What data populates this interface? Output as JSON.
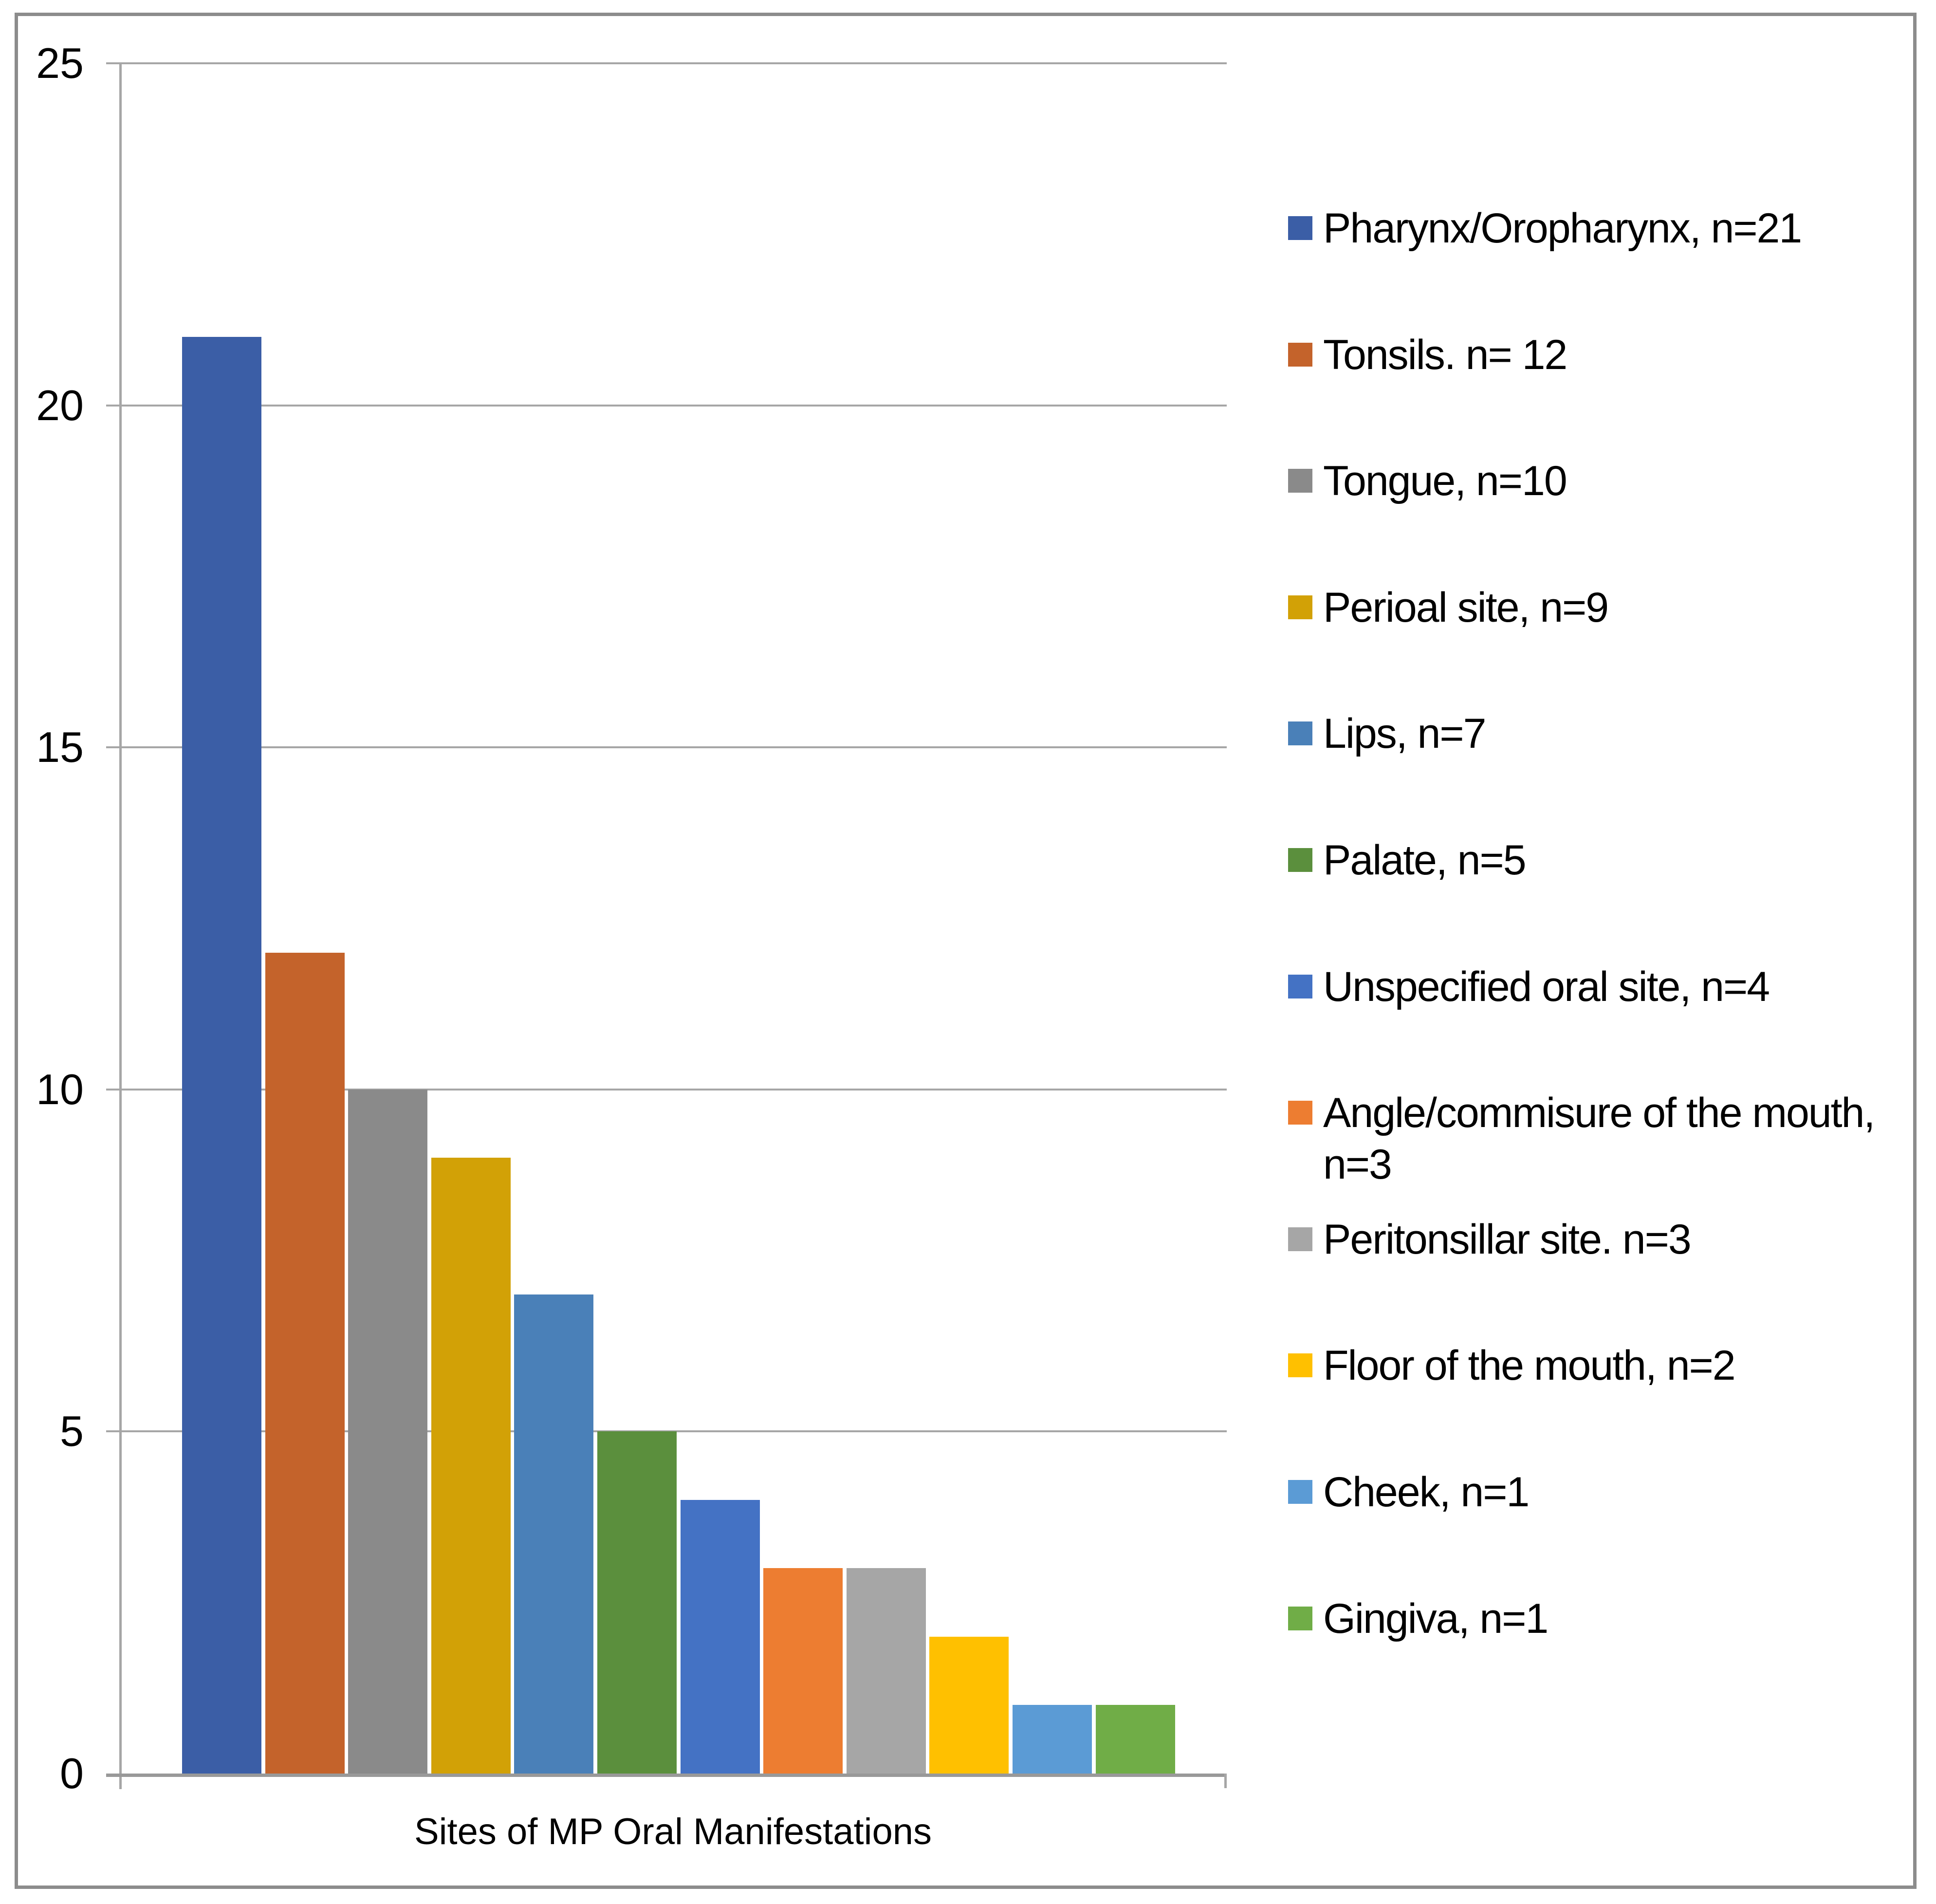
{
  "chart_data": {
    "type": "bar",
    "title": "",
    "xlabel": "Sites of MP Oral Manifestations",
    "ylabel": "",
    "ylim": [
      0,
      25
    ],
    "yticks": [
      0,
      5,
      10,
      15,
      20,
      25
    ],
    "ytick_labels": [
      "0",
      "5",
      "10",
      "15",
      "20",
      "25"
    ],
    "grid": "horizontal gridlines on",
    "legend_position": "right",
    "categories": [
      "Pharynx/Oropharynx",
      "Tonsils",
      "Tongue",
      "Perioal site",
      "Lips",
      "Palate",
      "Unspecified oral site",
      "Angle/commisure of the mouth",
      "Peritonsillar site",
      "Floor of the mouth",
      "Cheek",
      "Gingiva"
    ],
    "values": [
      21,
      12,
      10,
      9,
      7,
      5,
      4,
      3,
      3,
      2,
      1,
      1
    ],
    "series": [
      {
        "name": "Pharynx/Oropharynx",
        "value": 21,
        "color": "#3B5EA6",
        "legend_label": "Pharynx/Oropharynx, n=21",
        "legend_lines": [
          "Pharynx/Oropharynx, n=21"
        ]
      },
      {
        "name": "Tonsils",
        "value": 12,
        "color": "#C4632B",
        "legend_label": "Tonsils. n= 12",
        "legend_lines": [
          "Tonsils. n= 12"
        ]
      },
      {
        "name": "Tongue",
        "value": 10,
        "color": "#8A8A8A",
        "legend_label": "Tongue, n=10",
        "legend_lines": [
          "Tongue, n=10"
        ]
      },
      {
        "name": "Perioal site",
        "value": 9,
        "color": "#D2A106",
        "legend_label": "Perioal site, n=9",
        "legend_lines": [
          "Perioal site, n=9"
        ]
      },
      {
        "name": "Lips",
        "value": 7,
        "color": "#4A80B8",
        "legend_label": "Lips, n=7",
        "legend_lines": [
          "Lips, n=7"
        ]
      },
      {
        "name": "Palate",
        "value": 5,
        "color": "#5B8F3D",
        "legend_label": "Palate, n=5",
        "legend_lines": [
          "Palate, n=5"
        ]
      },
      {
        "name": "Unspecified oral site",
        "value": 4,
        "color": "#4472C4",
        "legend_label": "Unspecified oral site, n=4",
        "legend_lines": [
          "Unspecified oral site, n=4"
        ]
      },
      {
        "name": "Angle/commisure of the mouth",
        "value": 3,
        "color": "#ED7D31",
        "legend_label": "Angle/commisure of the mouth, n=3",
        "legend_lines": [
          "Angle/commisure of the mouth,",
          "n=3"
        ]
      },
      {
        "name": "Peritonsillar site",
        "value": 3,
        "color": "#A6A6A6",
        "legend_label": "Peritonsillar site. n=3",
        "legend_lines": [
          "Peritonsillar site. n=3"
        ]
      },
      {
        "name": "Floor of the mouth",
        "value": 2,
        "color": "#FFC000",
        "legend_label": "Floor of the mouth, n=2",
        "legend_lines": [
          "Floor of the mouth, n=2"
        ]
      },
      {
        "name": "Cheek",
        "value": 1,
        "color": "#5B9BD5",
        "legend_label": "Cheek, n=1",
        "legend_lines": [
          "Cheek, n=1"
        ]
      },
      {
        "name": "Gingiva",
        "value": 1,
        "color": "#70AD47",
        "legend_label": "Gingiva, n=1",
        "legend_lines": [
          "Gingiva, n=1"
        ]
      }
    ],
    "colors": {
      "gridline": "#A6A6A6",
      "axis_line": "#A6A6A6",
      "baseline": "#999999",
      "frame_border": "#8C8C8C",
      "text": "#000000",
      "background": "#FFFFFF"
    }
  }
}
